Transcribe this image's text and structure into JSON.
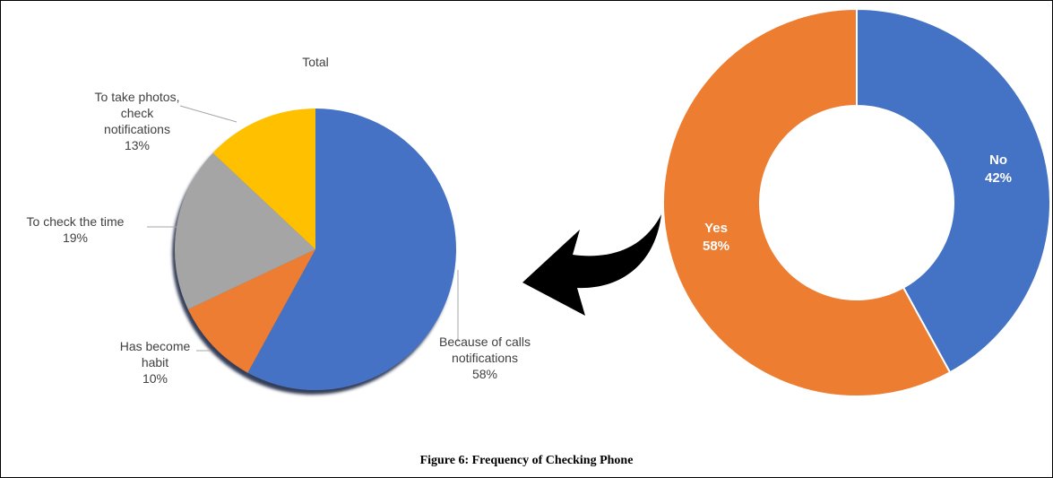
{
  "caption": "Figure 6: Frequency of Checking Phone",
  "chart_data": [
    {
      "type": "pie",
      "title": "",
      "series": [
        {
          "values": [
            42,
            58
          ],
          "categories": [
            "No",
            "Yes"
          ]
        }
      ],
      "labels": [
        {
          "lines": [
            "No",
            "42%"
          ]
        },
        {
          "lines": [
            "Yes",
            "58%"
          ]
        }
      ],
      "colors": [
        "#4472C4",
        "#ED7D31"
      ],
      "hole": true
    },
    {
      "type": "pie",
      "title": "Total",
      "series": [
        {
          "values": [
            58,
            10,
            19,
            13
          ],
          "categories": [
            "Because of calls notifications",
            "Has become habit",
            "To check the time",
            "To take photos, check notifications"
          ]
        }
      ],
      "labels": [
        {
          "lines": [
            "Because of calls",
            "notifications",
            "58%"
          ]
        },
        {
          "lines": [
            "Has become",
            "habit",
            "10%"
          ]
        },
        {
          "lines": [
            "To check the time",
            "19%"
          ]
        },
        {
          "lines": [
            "To take photos,",
            "check",
            "notifications",
            "13%"
          ]
        }
      ],
      "colors": [
        "#4472C4",
        "#ED7D31",
        "#A5A5A5",
        "#FFC000"
      ]
    }
  ]
}
